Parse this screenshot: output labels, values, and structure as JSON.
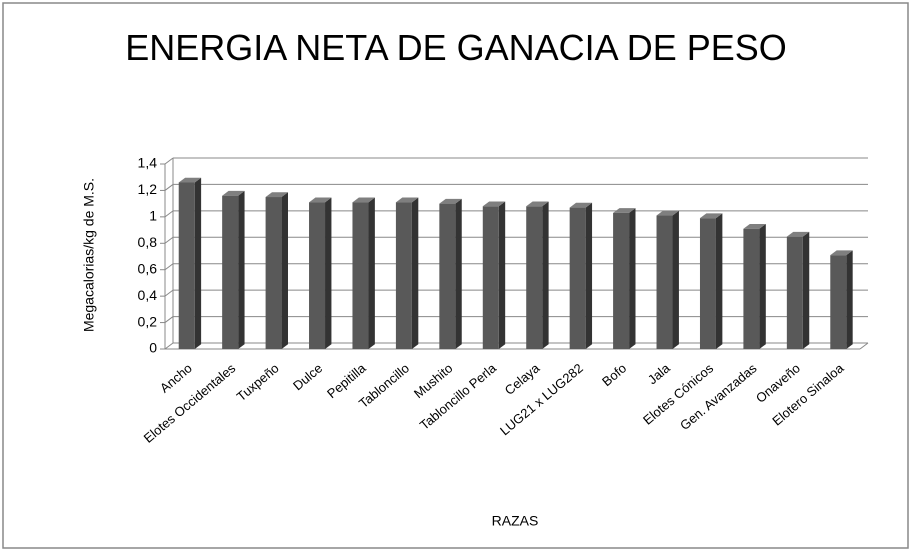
{
  "chart_data": {
    "type": "bar",
    "title": "ENERGIA NETA DE GANACIA DE PESO",
    "x_label": "RAZAS",
    "y_label": "Megacalorias/kg de M.S.",
    "categories": [
      "Ancho",
      "Elotes Occidentales",
      "Tuxpeño",
      "Dulce",
      "Pepitilla",
      "Tabloncillo",
      "Mushito",
      "Tabloncillo Perla",
      "Celaya",
      "LUG21 x LUG282",
      "Bofo",
      "Jala",
      "Elotes Cónicos",
      "Gen. Avanzadas",
      "Onaveño",
      "Elotero Sinaloa"
    ],
    "values": [
      1.26,
      1.16,
      1.15,
      1.11,
      1.11,
      1.11,
      1.1,
      1.08,
      1.08,
      1.07,
      1.03,
      1.01,
      0.99,
      0.91,
      0.85,
      0.71
    ],
    "color": "#595959",
    "ylim": [
      0,
      1.4
    ],
    "yticks": [
      0,
      {
        "value": 0.2,
        "label": "0,2"
      },
      {
        "value": 0.4,
        "label": "0,4"
      },
      {
        "value": 0.6,
        "label": "0,6"
      },
      {
        "value": 0.8,
        "label": "0,8"
      },
      1,
      {
        "value": 1.2,
        "label": "1,2"
      },
      {
        "value": 1.4,
        "label": "1,4"
      }
    ],
    "grid": true
  }
}
